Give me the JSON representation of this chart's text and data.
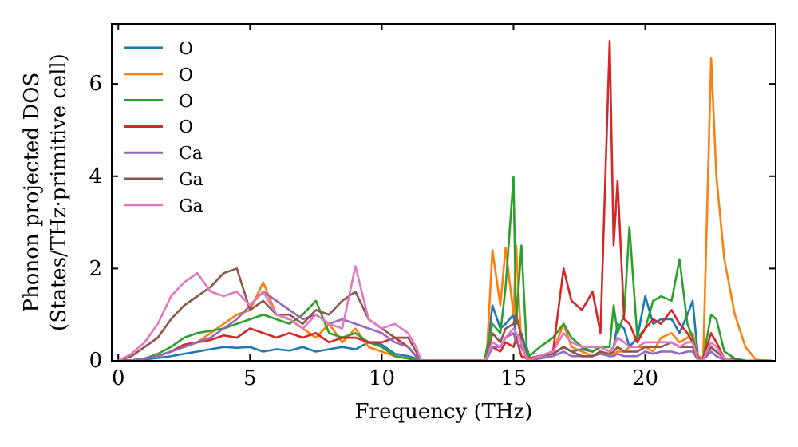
{
  "chart_data": {
    "type": "line",
    "xlabel": "Frequency (THz)",
    "ylabel": "Phonon projected DOS\n(States/THz·primitive cell)",
    "x": [
      0,
      0.5,
      1,
      1.5,
      2,
      2.5,
      3,
      3.5,
      4,
      4.5,
      5,
      5.5,
      6,
      6.5,
      7,
      7.5,
      8,
      8.5,
      9,
      9.5,
      10,
      10.5,
      11,
      11.3,
      11.5,
      13.9,
      14.0,
      14.2,
      14.5,
      14.7,
      15.0,
      15.1,
      15.3,
      15.5,
      15.6,
      16.0,
      16.5,
      16.9,
      17.2,
      17.6,
      18.0,
      18.3,
      18.65,
      18.8,
      18.95,
      19.2,
      19.4,
      19.7,
      20.0,
      20.3,
      20.6,
      21.0,
      21.3,
      21.6,
      21.8,
      22.0,
      22.2,
      22.5,
      22.7,
      23.0,
      23.4,
      23.8,
      24.2,
      24.8
    ],
    "xlim": [
      -0.25,
      24.95
    ],
    "ylim": [
      0,
      7.3
    ],
    "xticks": [
      0,
      5,
      10,
      15,
      20
    ],
    "yticks": [
      0,
      2,
      4,
      6
    ],
    "legend": "top left",
    "grid": false,
    "series": [
      {
        "name": "O",
        "color": "#1f77b4",
        "values": [
          0,
          0.01,
          0.03,
          0.06,
          0.1,
          0.15,
          0.2,
          0.25,
          0.3,
          0.28,
          0.3,
          0.2,
          0.25,
          0.22,
          0.3,
          0.2,
          0.25,
          0.3,
          0.25,
          0.4,
          0.35,
          0.15,
          0.1,
          0.05,
          0,
          0,
          0.2,
          1.2,
          0.7,
          0.8,
          1.0,
          0.5,
          0.6,
          0.2,
          0.05,
          0.1,
          0.15,
          0.3,
          0.2,
          0.25,
          0.2,
          0.3,
          0.2,
          0.3,
          0.8,
          0.7,
          0.3,
          0.5,
          1.4,
          0.8,
          0.9,
          0.9,
          0.6,
          1.0,
          1.3,
          0.1,
          0.05,
          0.3,
          0.2,
          null,
          null,
          null,
          null,
          null
        ]
      },
      {
        "name": "O",
        "color": "#ff7f0e",
        "values": [
          null,
          null,
          null,
          null,
          null,
          0.3,
          0.4,
          0.6,
          0.8,
          1.0,
          1.1,
          1.7,
          1.0,
          0.9,
          0.7,
          0.5,
          0.8,
          0.4,
          0.7,
          0.3,
          0.2,
          0.1,
          0.05,
          0.02,
          0,
          0,
          0.3,
          2.4,
          1.2,
          2.45,
          1.0,
          2.5,
          0.3,
          0.1,
          0.05,
          0.1,
          0.2,
          0.8,
          0.3,
          0.2,
          0.1,
          0.2,
          0.1,
          0.15,
          0.2,
          0.2,
          0.3,
          0.3,
          0.3,
          0.2,
          0.5,
          0.6,
          0.4,
          0.5,
          0.6,
          0.1,
          0.05,
          6.55,
          4.0,
          2.2,
          1.0,
          0.3,
          0.02,
          0
        ]
      },
      {
        "name": "O",
        "color": "#2ca02c",
        "values": [
          0,
          0.01,
          0.05,
          0.15,
          0.3,
          0.5,
          0.6,
          0.65,
          0.7,
          0.8,
          0.9,
          1.0,
          0.9,
          0.8,
          1.0,
          1.3,
          0.6,
          0.5,
          0.6,
          0.4,
          0.3,
          0.1,
          0.05,
          0.02,
          0,
          0,
          0.3,
          0.8,
          0.6,
          1.6,
          3.98,
          0.8,
          2.5,
          0.3,
          0.1,
          0.3,
          0.5,
          0.8,
          0.5,
          0.3,
          0.2,
          0.3,
          0.3,
          1.2,
          0.6,
          1.0,
          2.9,
          0.5,
          0.7,
          1.3,
          1.4,
          1.3,
          2.2,
          0.8,
          0.5,
          0.05,
          0.05,
          1.0,
          0.9,
          0.2,
          0.05,
          0,
          0,
          0
        ]
      },
      {
        "name": "O",
        "color": "#d62728",
        "values": [
          null,
          null,
          null,
          0.1,
          0.2,
          0.35,
          0.4,
          0.45,
          0.55,
          0.5,
          0.7,
          0.6,
          0.5,
          0.6,
          0.5,
          0.6,
          0.4,
          0.5,
          0.5,
          0.4,
          0.4,
          0.5,
          0.3,
          0.1,
          0,
          0,
          0.1,
          0.3,
          0.2,
          0.4,
          0.3,
          0.5,
          0.1,
          0.05,
          0.05,
          0.1,
          0.2,
          2.0,
          1.3,
          1.1,
          1.5,
          0.6,
          6.93,
          2.5,
          3.9,
          0.9,
          0.8,
          0.4,
          0.7,
          0.9,
          0.8,
          1.1,
          0.8,
          0.6,
          0.4,
          0.05,
          0.05,
          0.6,
          0.4,
          0.05,
          0.02,
          0,
          null,
          null
        ]
      },
      {
        "name": "Ca",
        "color": "#9467bd",
        "values": [
          0,
          0.01,
          0.05,
          0.1,
          0.2,
          0.3,
          0.4,
          0.5,
          0.7,
          0.9,
          1.2,
          1.5,
          1.3,
          1.1,
          0.9,
          1.0,
          0.8,
          0.9,
          0.8,
          0.7,
          0.6,
          0.4,
          0.3,
          0.1,
          0,
          0,
          0.05,
          0.3,
          0.3,
          0.5,
          0.6,
          0.4,
          0.3,
          0.05,
          0.02,
          0.05,
          0.1,
          0.2,
          0.1,
          0.1,
          0.1,
          0.15,
          0.1,
          0.1,
          0.15,
          0.1,
          0.1,
          0.1,
          0.2,
          0.15,
          0.2,
          0.2,
          0.15,
          0.2,
          0.2,
          0.02,
          0.02,
          0.2,
          0.1,
          0.02,
          0,
          null,
          null,
          null
        ]
      },
      {
        "name": "Ga",
        "color": "#8c564b",
        "values": [
          0,
          0.1,
          0.3,
          0.5,
          0.9,
          1.2,
          1.4,
          1.6,
          1.9,
          2.0,
          1.1,
          1.3,
          1.0,
          1.0,
          0.8,
          1.1,
          1.0,
          1.3,
          1.5,
          0.9,
          0.7,
          0.5,
          0.5,
          0.2,
          0,
          0,
          0.1,
          0.6,
          0.4,
          0.7,
          0.8,
          1.0,
          0.5,
          0.05,
          0.02,
          0.1,
          0.15,
          0.3,
          0.2,
          0.1,
          0.1,
          0.2,
          0.15,
          0.2,
          0.3,
          0.2,
          0.2,
          0.2,
          0.3,
          0.3,
          0.3,
          0.4,
          0.3,
          0.3,
          0.3,
          0.02,
          0.02,
          0.3,
          0.2,
          0.05,
          0,
          0,
          0,
          0
        ]
      },
      {
        "name": "Ga",
        "color": "#e377c2",
        "values": [
          0,
          0.15,
          0.4,
          0.8,
          1.4,
          1.7,
          1.9,
          1.5,
          1.4,
          1.5,
          1.2,
          1.5,
          1.0,
          0.9,
          0.7,
          1.0,
          0.8,
          0.7,
          2.05,
          0.9,
          0.7,
          0.8,
          0.6,
          0.3,
          0,
          0,
          0.1,
          0.4,
          0.3,
          0.5,
          0.7,
          0.6,
          0.4,
          0.05,
          0.02,
          0.1,
          0.2,
          0.6,
          0.4,
          0.3,
          0.3,
          0.3,
          0.2,
          0.3,
          0.5,
          0.4,
          0.3,
          0.3,
          0.4,
          0.4,
          0.4,
          0.4,
          0.3,
          0.4,
          0.4,
          0.02,
          0.02,
          0.4,
          0.3,
          0.05,
          0,
          null,
          null,
          null
        ]
      }
    ]
  }
}
